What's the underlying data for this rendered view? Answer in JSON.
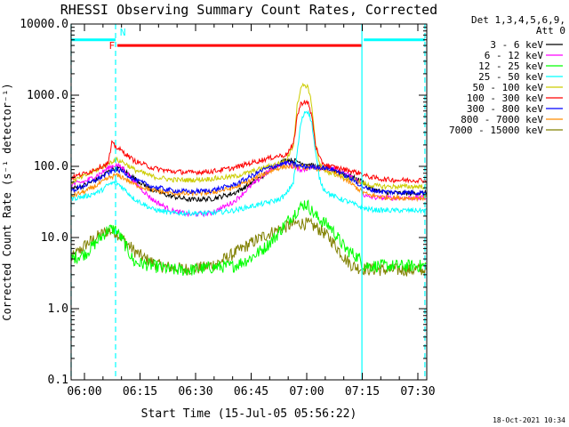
{
  "chart_data": {
    "type": "line",
    "title": "RHESSI Observing Summary Count Rates, Corrected",
    "xlabel": "Start Time (15-Jul-05 05:56:22)",
    "ylabel": "Corrected Count Rate (s⁻¹ detector⁻¹)",
    "x_unit": "minutes since 05:56:22 UT",
    "xlim": [
      0,
      96
    ],
    "ylim": [
      0.1,
      10000
    ],
    "yscale": "log",
    "xticks": [
      {
        "x": 3.6,
        "label": "06:00"
      },
      {
        "x": 18.6,
        "label": "06:15"
      },
      {
        "x": 33.6,
        "label": "06:30"
      },
      {
        "x": 48.6,
        "label": "06:45"
      },
      {
        "x": 63.6,
        "label": "07:00"
      },
      {
        "x": 78.6,
        "label": "07:15"
      },
      {
        "x": 93.6,
        "label": "07:30"
      }
    ],
    "yticks": [
      {
        "y": 0.1,
        "label": "0.1"
      },
      {
        "y": 1,
        "label": "1.0"
      },
      {
        "y": 10,
        "label": "10.0"
      },
      {
        "y": 100,
        "label": "100.0"
      },
      {
        "y": 1000,
        "label": "1000.0"
      },
      {
        "y": 10000,
        "label": "10000.0"
      }
    ],
    "legend_header": [
      "Det 1,3,4,5,6,9,",
      "Att 0"
    ],
    "legend_position": "right",
    "series": [
      {
        "name": "3 - 6 keV",
        "color": "#000000",
        "x": [
          0,
          4,
          8,
          10,
          12,
          14,
          17,
          22,
          27,
          32,
          38,
          44,
          48,
          52,
          55,
          58,
          61,
          64,
          66,
          68,
          72,
          76,
          79,
          80,
          84,
          88,
          92,
          96
        ],
        "y": [
          48,
          55,
          70,
          85,
          95,
          90,
          68,
          46,
          38,
          34,
          35,
          42,
          55,
          75,
          100,
          125,
          118,
          105,
          100,
          95,
          85,
          70,
          60,
          50,
          44,
          42,
          42,
          42
        ]
      },
      {
        "name": "6 - 12 keV",
        "color": "#ff00ff",
        "x": [
          0,
          4,
          8,
          10,
          12,
          14,
          17,
          22,
          27,
          32,
          38,
          44,
          48,
          52,
          55,
          58,
          61,
          63,
          64,
          66,
          70,
          74,
          78,
          79,
          80,
          84,
          88,
          92,
          96
        ],
        "y": [
          55,
          62,
          80,
          95,
          105,
          95,
          60,
          34,
          24,
          21,
          22,
          32,
          50,
          75,
          100,
          115,
          92,
          90,
          95,
          100,
          95,
          80,
          60,
          40,
          37,
          36,
          36,
          36,
          36
        ]
      },
      {
        "name": "12 - 25 keV",
        "color": "#00ff00",
        "x": [
          0,
          4,
          8,
          10,
          12,
          14,
          17,
          22,
          27,
          32,
          38,
          44,
          48,
          52,
          55,
          58,
          61,
          63,
          64,
          66,
          70,
          74,
          78,
          79,
          80,
          84,
          88,
          92,
          96
        ],
        "y": [
          5,
          6,
          10,
          13,
          13,
          9,
          4.5,
          4,
          3.5,
          3.5,
          3.8,
          4,
          5,
          7,
          10,
          16,
          24,
          30,
          28,
          20,
          14,
          7,
          5,
          4,
          4,
          4,
          4,
          4,
          4
        ]
      },
      {
        "name": "25 - 50 keV",
        "color": "#00ffff",
        "x": [
          0,
          4,
          8,
          10,
          12,
          14,
          17,
          22,
          27,
          32,
          38,
          44,
          48,
          52,
          56,
          58,
          60,
          61,
          62,
          63,
          64,
          65,
          66,
          67,
          68,
          70,
          72,
          74,
          76,
          78,
          80,
          84,
          88,
          92,
          96
        ],
        "y": [
          35,
          38,
          45,
          55,
          60,
          50,
          35,
          25,
          22,
          22,
          22,
          24,
          27,
          30,
          34,
          40,
          60,
          150,
          400,
          580,
          600,
          400,
          150,
          70,
          50,
          40,
          36,
          33,
          30,
          27,
          25,
          24,
          24,
          24,
          24
        ]
      },
      {
        "name": "50 - 100 keV",
        "color": "#cccc00",
        "x": [
          0,
          4,
          8,
          10,
          12,
          14,
          17,
          22,
          27,
          32,
          38,
          44,
          48,
          52,
          56,
          58,
          60,
          61,
          62,
          63,
          64,
          65,
          66,
          67,
          68,
          70,
          72,
          74,
          76,
          78,
          80,
          84,
          88,
          92,
          96
        ],
        "y": [
          60,
          75,
          95,
          110,
          125,
          115,
          90,
          72,
          65,
          64,
          67,
          72,
          82,
          95,
          110,
          120,
          200,
          700,
          1300,
          1400,
          1300,
          700,
          200,
          110,
          90,
          80,
          75,
          70,
          65,
          60,
          55,
          52,
          52,
          52,
          52
        ]
      },
      {
        "name": "100 - 300 keV",
        "color": "#ff0000",
        "x": [
          0,
          4,
          8,
          10,
          11,
          12,
          14,
          17,
          22,
          27,
          32,
          38,
          44,
          48,
          52,
          56,
          58,
          60,
          61,
          62,
          63,
          64,
          65,
          66,
          67,
          68,
          70,
          72,
          74,
          76,
          78,
          80,
          84,
          88,
          92,
          96
        ],
        "y": [
          70,
          80,
          100,
          110,
          210,
          190,
          160,
          120,
          95,
          85,
          82,
          85,
          95,
          110,
          125,
          140,
          145,
          200,
          500,
          750,
          820,
          760,
          500,
          200,
          130,
          110,
          100,
          95,
          90,
          85,
          80,
          72,
          66,
          64,
          64,
          64
        ]
      },
      {
        "name": "300 - 800 keV",
        "color": "#0000ff",
        "x": [
          0,
          4,
          8,
          10,
          12,
          14,
          17,
          22,
          27,
          32,
          38,
          44,
          48,
          52,
          56,
          58,
          60,
          62,
          64,
          66,
          68,
          70,
          72,
          74,
          76,
          78,
          80,
          84,
          88,
          92,
          96
        ],
        "y": [
          45,
          55,
          70,
          80,
          90,
          85,
          65,
          52,
          46,
          44,
          46,
          55,
          70,
          90,
          105,
          112,
          108,
          100,
          98,
          98,
          96,
          92,
          85,
          75,
          65,
          55,
          48,
          44,
          43,
          43,
          43
        ]
      },
      {
        "name": "800 - 7000 keV",
        "color": "#ff8c00",
        "x": [
          0,
          4,
          8,
          10,
          12,
          14,
          17,
          22,
          27,
          32,
          38,
          44,
          48,
          52,
          56,
          58,
          60,
          62,
          64,
          66,
          68,
          70,
          72,
          74,
          76,
          78,
          80,
          84,
          88,
          92,
          96
        ],
        "y": [
          38,
          45,
          58,
          68,
          75,
          70,
          56,
          46,
          42,
          41,
          43,
          50,
          62,
          78,
          95,
          100,
          100,
          98,
          96,
          94,
          92,
          85,
          75,
          65,
          55,
          46,
          40,
          37,
          36,
          36,
          36
        ]
      },
      {
        "name": "7000 - 15000 keV",
        "color": "#808000",
        "x": [
          0,
          4,
          8,
          10,
          12,
          14,
          17,
          20,
          24,
          28,
          32,
          36,
          40,
          44,
          48,
          52,
          56,
          60,
          62,
          64,
          66,
          68,
          70,
          72,
          74,
          76,
          78,
          80,
          84,
          88,
          92,
          96
        ],
        "y": [
          5,
          8,
          11,
          12.5,
          12,
          9.5,
          6.5,
          5,
          4,
          3.7,
          3.6,
          3.8,
          4.5,
          6,
          8,
          10.5,
          13,
          15.5,
          16,
          15.5,
          14,
          12,
          9.5,
          7,
          5,
          4,
          3.7,
          3.6,
          3.5,
          3.5,
          3.5,
          3.5
        ]
      }
    ],
    "annotations": [
      {
        "type": "bar",
        "label": "",
        "x0": 0,
        "x1": 12,
        "y": 6000,
        "color": "#00ffff"
      },
      {
        "type": "bar",
        "label": "F",
        "x0": 12.5,
        "x1": 78.5,
        "y": 5000,
        "color": "#ff0000"
      },
      {
        "type": "bar",
        "label": "",
        "x0": 79,
        "x1": 95.5,
        "y": 6000,
        "color": "#00ffff"
      },
      {
        "type": "marker",
        "label": "N",
        "x": 12.7,
        "y": 6500,
        "color": "#00ffff"
      },
      {
        "type": "vline",
        "x": 0,
        "color": "#00ffff",
        "style": "dashed"
      },
      {
        "type": "vline",
        "x": 12,
        "color": "#00ffff",
        "style": "dashed"
      },
      {
        "type": "vline",
        "x": 95.5,
        "color": "#00ffff",
        "style": "dashed"
      },
      {
        "type": "vline",
        "x": 78.5,
        "color": "#00ffff",
        "style": "solid"
      }
    ]
  },
  "footer": {
    "timestamp": "18-Oct-2021 10:34"
  }
}
